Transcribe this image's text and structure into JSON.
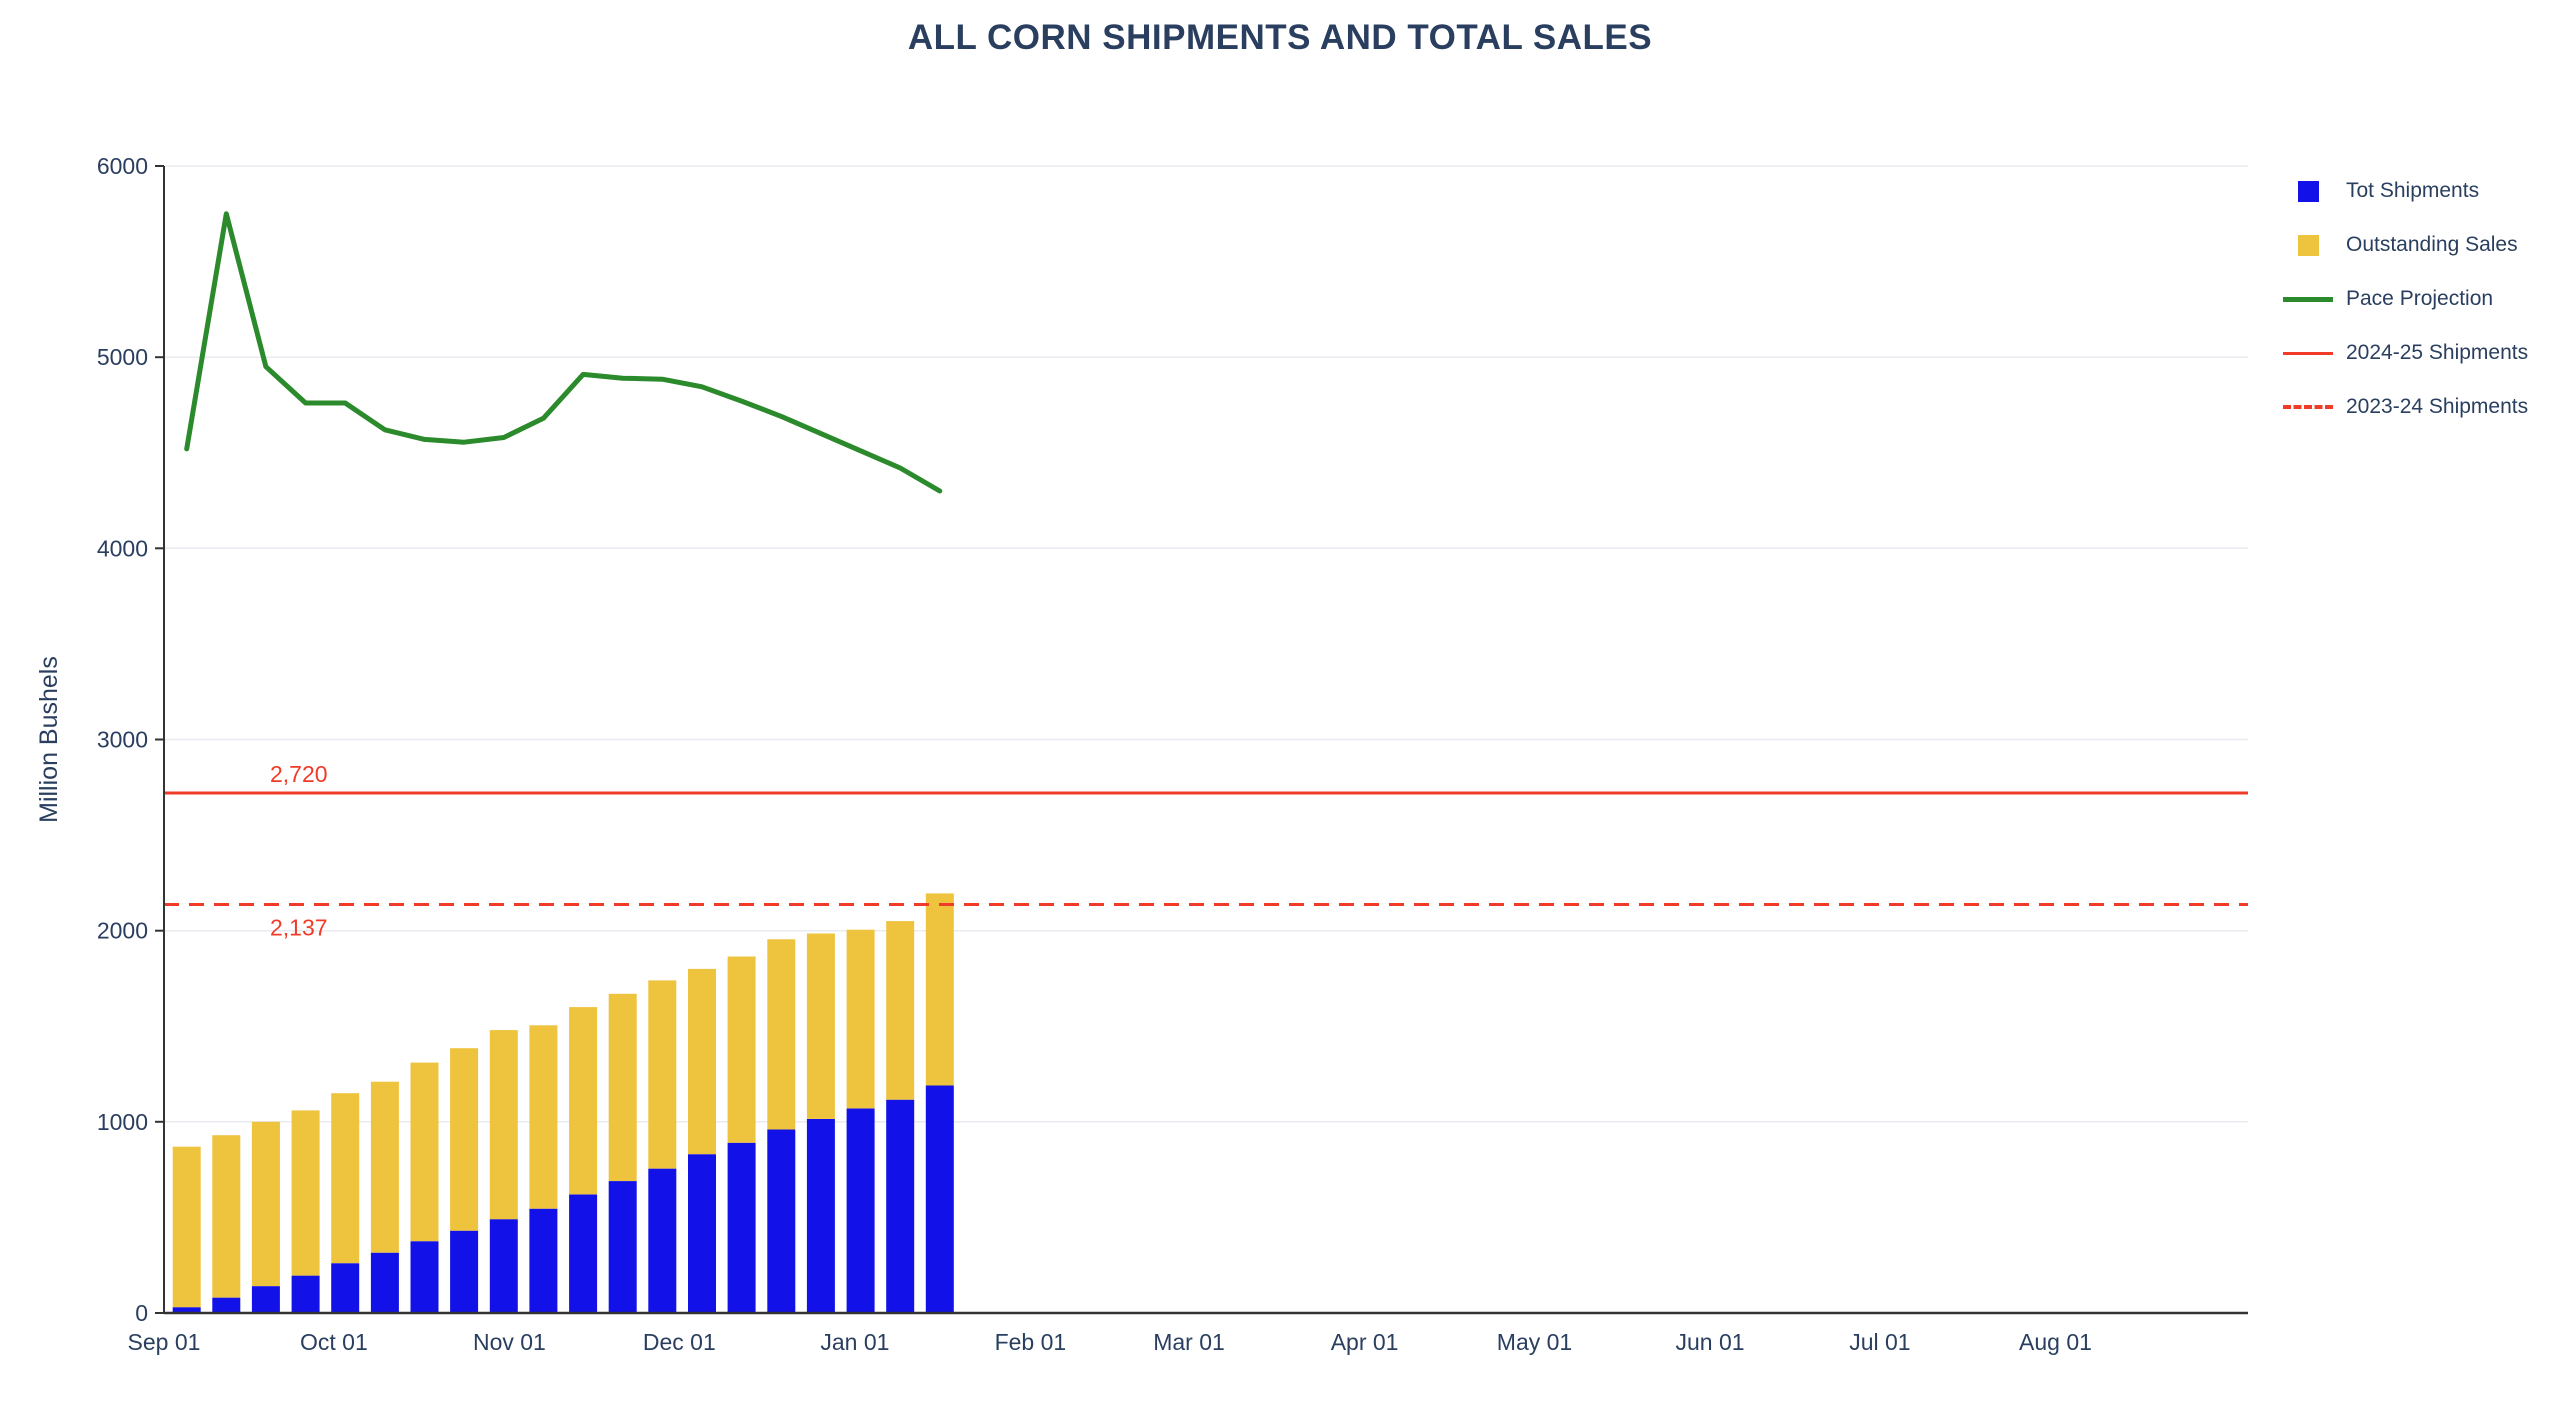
{
  "chart_data": {
    "type": "bar",
    "stacked": true,
    "title": "ALL CORN SHIPMENTS AND TOTAL SALES",
    "ylabel": "Million Bushels",
    "ylim": [
      0,
      6000
    ],
    "yticks": [
      0,
      1000,
      2000,
      3000,
      4000,
      5000,
      6000
    ],
    "grid": true,
    "legend_position": "right",
    "xtick_labels": [
      "Sep 01",
      "Oct 01",
      "Nov 01",
      "Dec 01",
      "Jan 01",
      "Feb 01",
      "Mar 01",
      "Apr 01",
      "May 01",
      "Jun 01",
      "Jul 01",
      "Aug 01"
    ],
    "xtick_days": [
      0,
      30,
      61,
      91,
      122,
      153,
      181,
      212,
      242,
      273,
      303,
      334
    ],
    "x_span_days": 368,
    "bars": {
      "days": [
        4,
        11,
        18,
        25,
        32,
        39,
        46,
        53,
        60,
        67,
        74,
        81,
        88,
        95,
        102,
        109,
        116,
        123,
        130,
        137
      ],
      "series": [
        {
          "name": "Tot Shipments",
          "color": "#1212e8",
          "values": [
            30,
            80,
            140,
            195,
            260,
            315,
            375,
            430,
            490,
            545,
            620,
            690,
            755,
            830,
            890,
            960,
            1015,
            1070,
            1115,
            1190
          ]
        },
        {
          "name": "Outstanding Sales",
          "color": "#eec33e",
          "values": [
            840,
            850,
            860,
            865,
            890,
            895,
            935,
            955,
            990,
            960,
            980,
            980,
            985,
            970,
            975,
            995,
            970,
            935,
            935,
            1005
          ]
        }
      ]
    },
    "pace_line": {
      "name": "Pace Projection",
      "color": "#2b8a2b",
      "days": [
        4,
        11,
        18,
        25,
        32,
        39,
        46,
        53,
        60,
        67,
        74,
        81,
        88,
        95,
        102,
        109,
        116,
        123,
        130,
        137
      ],
      "values": [
        4520,
        5750,
        4950,
        4760,
        4760,
        4620,
        4570,
        4555,
        4580,
        4680,
        4910,
        4890,
        4885,
        4845,
        4770,
        4690,
        4600,
        4510,
        4420,
        4300
      ]
    },
    "hlines": [
      {
        "name": "2024-25 Shipments",
        "value": 2720,
        "label": "2,720",
        "style": "solid",
        "color": "#ef3b28",
        "label_position": "above"
      },
      {
        "name": "2023-24 Shipments",
        "value": 2137,
        "label": "2,137",
        "style": "dashed",
        "color": "#ef3b28",
        "label_position": "below"
      }
    ]
  },
  "legend": {
    "items": [
      {
        "label": "Tot Shipments",
        "swatch": "square",
        "color": "#1212e8"
      },
      {
        "label": "Outstanding Sales",
        "swatch": "square",
        "color": "#eec33e"
      },
      {
        "label": "Pace Projection",
        "swatch": "line",
        "color": "#2b8a2b"
      },
      {
        "label": "2024-25 Shipments",
        "swatch": "line",
        "color": "#ef3b28"
      },
      {
        "label": "2023-24 Shipments",
        "swatch": "dashed-line",
        "color": "#ef3b28"
      }
    ]
  },
  "colors": {
    "title_text": "#2a3f5f",
    "axis_text": "#2a3f5f",
    "grid_line": "#e9ebf1",
    "axis_line": "#333333"
  }
}
